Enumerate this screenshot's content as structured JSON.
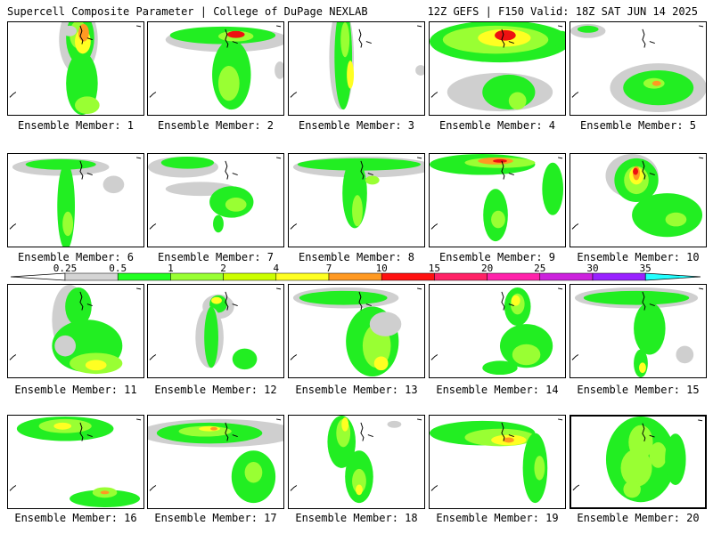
{
  "header": {
    "left": "Supercell Composite Parameter | College of DuPage NEXLAB",
    "right": "12Z GEFS | F150 Valid: 18Z SAT JUN 14 2025"
  },
  "colorbar": {
    "levels": [
      "0.25",
      "0.5",
      "1",
      "2",
      "4",
      "7",
      "10",
      "15",
      "20",
      "25",
      "30",
      "35"
    ],
    "colors": [
      "#d4d4d4",
      "#22ff22",
      "#99ff33",
      "#ccff00",
      "#ffff22",
      "#ff9922",
      "#ff1111",
      "#ff2266",
      "#ff22aa",
      "#cc22dd",
      "#9922ff",
      "#bb66dd",
      "#22ffff"
    ]
  },
  "members": [
    {
      "label": "Ensemble Member: 1"
    },
    {
      "label": "Ensemble Member: 2"
    },
    {
      "label": "Ensemble Member: 3"
    },
    {
      "label": "Ensemble Member: 4"
    },
    {
      "label": "Ensemble Member: 5"
    },
    {
      "label": "Ensemble Member: 6"
    },
    {
      "label": "Ensemble Member: 7"
    },
    {
      "label": "Ensemble Member: 8"
    },
    {
      "label": "Ensemble Member: 9"
    },
    {
      "label": "Ensemble Member: 10"
    },
    {
      "label": "Ensemble Member: 11"
    },
    {
      "label": "Ensemble Member: 12"
    },
    {
      "label": "Ensemble Member: 13"
    },
    {
      "label": "Ensemble Member: 14"
    },
    {
      "label": "Ensemble Member: 15"
    },
    {
      "label": "Ensemble Member: 16"
    },
    {
      "label": "Ensemble Member: 17"
    },
    {
      "label": "Ensemble Member: 18"
    },
    {
      "label": "Ensemble Member: 19"
    },
    {
      "label": "Ensemble Member: 20"
    }
  ],
  "selected_member": "20",
  "colors": {
    "gray": "#cfcfcf",
    "green": "#22ee22",
    "lime": "#99ff33",
    "yellow": "#ffff22",
    "orange": "#ff9922",
    "red": "#ee1111",
    "coast": "#000000"
  }
}
